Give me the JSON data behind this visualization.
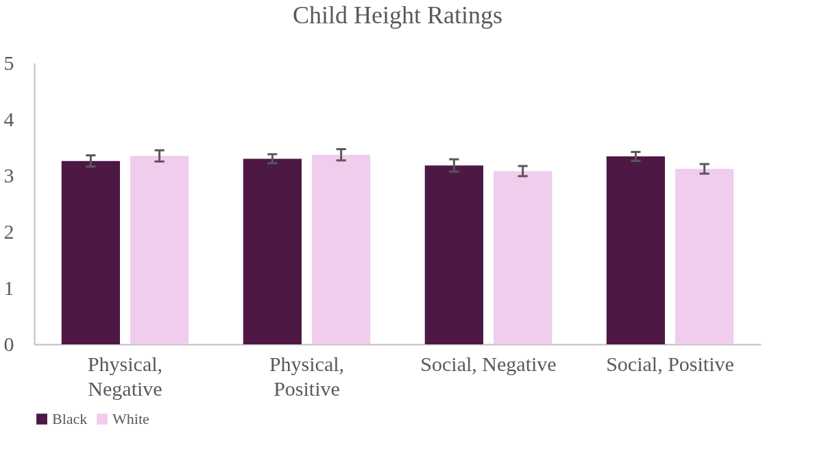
{
  "chart_data": {
    "type": "bar",
    "title": "Child Height Ratings",
    "categories": [
      "Physical,\nNegative",
      "Physical,\nPositive",
      "Social, Negative",
      "Social, Positive"
    ],
    "series": [
      {
        "name": "Black",
        "color": "#4e1845",
        "values": [
          3.26,
          3.3,
          3.18,
          3.34
        ],
        "errors": [
          0.1,
          0.08,
          0.11,
          0.08
        ]
      },
      {
        "name": "White",
        "color": "#f0cdec",
        "values": [
          3.35,
          3.37,
          3.08,
          3.12
        ],
        "errors": [
          0.1,
          0.1,
          0.09,
          0.085
        ]
      }
    ],
    "ylim": [
      0,
      5
    ],
    "yticks": [
      0,
      1,
      2,
      3,
      4,
      5
    ],
    "grid": false,
    "legend": "bottom"
  }
}
